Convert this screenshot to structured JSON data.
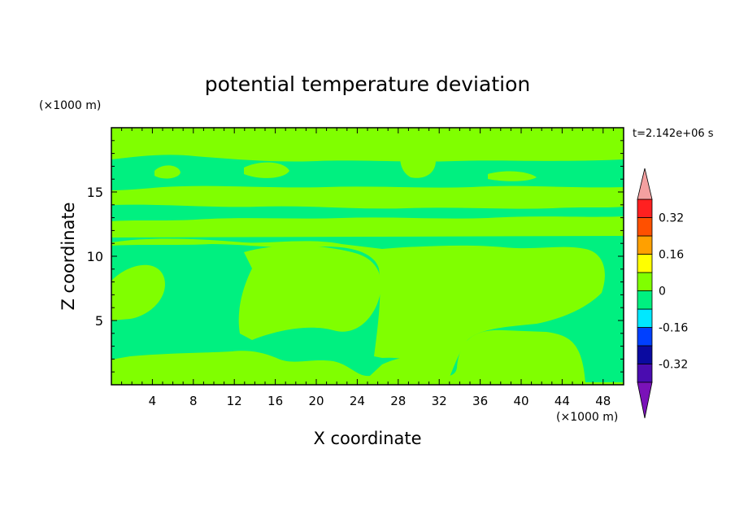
{
  "chart_data": {
    "type": "heatmap",
    "title": "potential temperature deviation",
    "xlabel": "X coordinate",
    "ylabel": "Z coordinate",
    "x_unit": "(×1000 m)",
    "y_unit": "(×1000 m)",
    "time_label": "t=2.142e+06 s",
    "xlim": [
      0,
      50
    ],
    "ylim": [
      0,
      20
    ],
    "x_ticks": [
      4,
      8,
      12,
      16,
      20,
      24,
      28,
      32,
      36,
      40,
      44,
      48
    ],
    "y_ticks": [
      5,
      10,
      15
    ],
    "fill_colors": {
      "positive": "#80ff00",
      "negative": "#00f080"
    },
    "colorbar": {
      "labels": [
        "0.32",
        "0.16",
        "0",
        "-0.16",
        "-0.32"
      ],
      "label_values": [
        0.32,
        0.16,
        0,
        -0.16,
        -0.32
      ],
      "levels": [
        -0.4,
        -0.32,
        -0.24,
        -0.16,
        -0.08,
        0,
        0.08,
        0.16,
        0.24,
        0.32,
        0.4
      ],
      "colors": [
        "#4a0cb0",
        "#0a0aa0",
        "#0040ff",
        "#00e8ff",
        "#00f080",
        "#80ff00",
        "#ffff00",
        "#ffa000",
        "#ff5000",
        "#ff2020"
      ],
      "under_color": "#7a12b8",
      "over_color": "#f4a0a0"
    }
  }
}
